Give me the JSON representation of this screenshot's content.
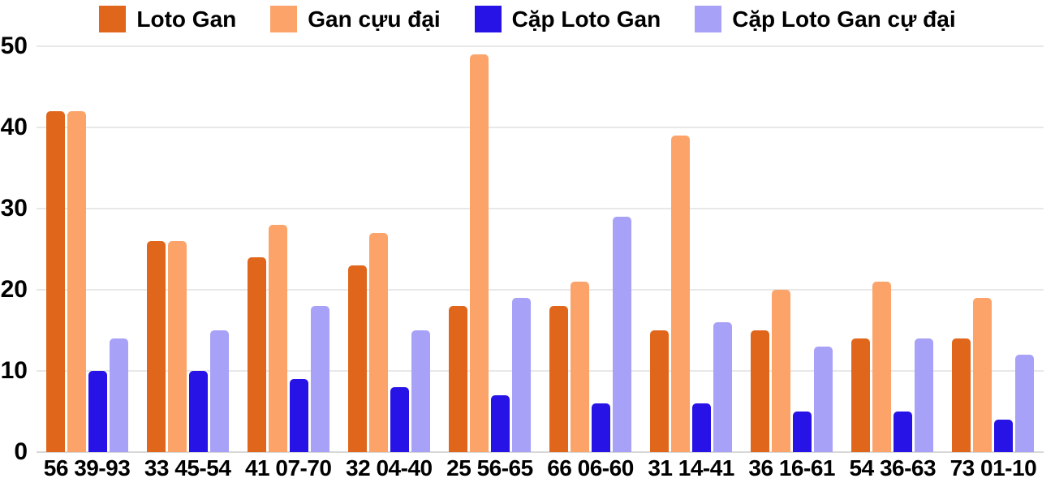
{
  "chart_data": {
    "type": "bar",
    "title": "",
    "xlabel": "",
    "ylabel": "",
    "ylim": [
      0,
      50
    ],
    "y_ticks": [
      0,
      10,
      20,
      30,
      40,
      50
    ],
    "grid": "horizontal",
    "legend_position": "top",
    "background_color": "#ffffff",
    "gridline_color": "#E8E8E8",
    "categories": [
      "56 39-93",
      "33 45-54",
      "41 07-70",
      "32 04-40",
      "25 56-65",
      "66 06-60",
      "31 14-41",
      "36 16-61",
      "54 36-63",
      "73 01-10"
    ],
    "series": [
      {
        "name": "Loto Gan",
        "color": "#E0661C",
        "values": [
          42,
          26,
          24,
          23,
          18,
          18,
          15,
          15,
          14,
          14
        ]
      },
      {
        "name": "Gan cựu đại",
        "color": "#FBA369",
        "values": [
          42,
          26,
          28,
          27,
          49,
          21,
          39,
          20,
          21,
          19
        ]
      },
      {
        "name": "Cặp Loto Gan",
        "color": "#2713E6",
        "values": [
          10,
          10,
          9,
          8,
          7,
          6,
          6,
          5,
          5,
          4
        ]
      },
      {
        "name": "Cặp Loto Gan cự đại",
        "color": "#A7A1F7",
        "values": [
          14,
          15,
          18,
          15,
          19,
          29,
          16,
          13,
          14,
          12
        ]
      }
    ]
  }
}
